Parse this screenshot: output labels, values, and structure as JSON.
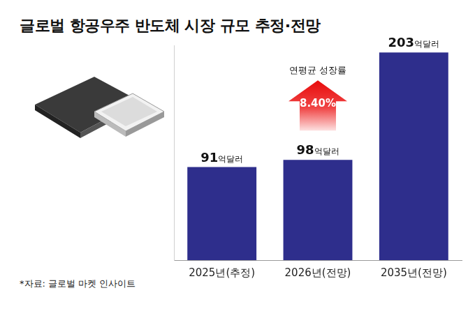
{
  "chart_data": {
    "type": "bar",
    "title": "글로벌 항공우주 반도체 시장 규모 추정·전망",
    "categories": [
      "2025년(추정)",
      "2026년(전망)",
      "2035년(전망)"
    ],
    "values": [
      91,
      98,
      203
    ],
    "value_labels": [
      "91억달러",
      "98억달러",
      "203억달러"
    ],
    "data_labels": true,
    "color": "#2e2e8c",
    "ylim": [
      0,
      210
    ],
    "tick_labels": "x",
    "grid": false,
    "annotations": [
      "연평균 성장률",
      "8.40%"
    ],
    "source": "*자료: 글로벌 마켓 인사이트"
  }
}
